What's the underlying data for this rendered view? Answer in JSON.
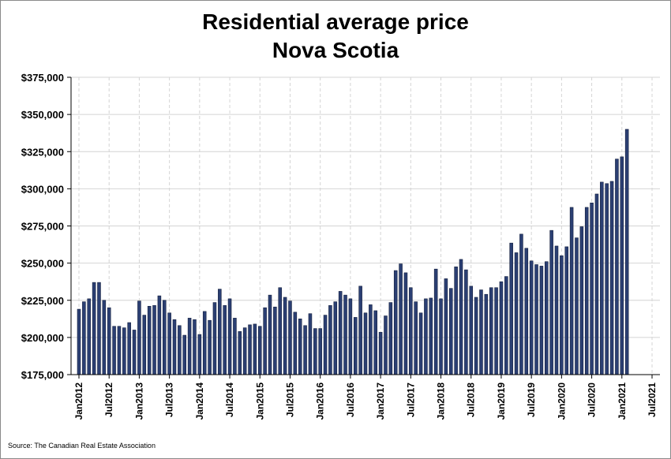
{
  "chart_data": {
    "type": "bar",
    "title": "Residential average price",
    "subtitle": "Nova Scotia",
    "xlabel": "",
    "ylabel": "",
    "ylim": [
      175000,
      375000
    ],
    "y_ticks": [
      175000,
      200000,
      225000,
      250000,
      275000,
      300000,
      325000,
      350000,
      375000
    ],
    "y_tick_labels": [
      "$175,000",
      "$200,000",
      "$225,000",
      "$250,000",
      "$275,000",
      "$300,000",
      "$325,000",
      "$350,000",
      "$375,000"
    ],
    "x_start": "Jan2012",
    "x_end": "Jul2021",
    "x_tick_labels": [
      "Jan2012",
      "Jul2012",
      "Jan2013",
      "Jul2013",
      "Jan2014",
      "Jul2014",
      "Jan2015",
      "Jul2015",
      "Jan2016",
      "Jul2016",
      "Jan2017",
      "Jul2017",
      "Jan2018",
      "Jul2018",
      "Jan2019",
      "Jul2019",
      "Jan2020",
      "Jul2020",
      "Jan2021",
      "Jul2021"
    ],
    "grid": true,
    "bar_color": "#2b3f73",
    "series": [
      {
        "values": [
          219000,
          224000,
          226000,
          237000,
          237000,
          225000,
          220000,
          207500,
          207500,
          206500,
          210000,
          205000,
          224500,
          215000,
          221000,
          221500,
          228000,
          225000,
          216500,
          212000,
          208000,
          201500,
          213000,
          212000,
          202000,
          217500,
          211500,
          223500,
          232500,
          221500,
          226000,
          213000,
          204000,
          206500,
          208500,
          209000,
          207500,
          220000,
          228500,
          220500,
          233500,
          227000,
          224500,
          217000,
          212500,
          208000,
          216000,
          206000,
          206000,
          215000,
          221500,
          224000,
          231000,
          228500,
          226000,
          213500,
          234500,
          216500,
          222000,
          218000,
          203500,
          214500,
          223500,
          245000,
          249500,
          243500,
          233500,
          224000,
          216500,
          226000,
          226500,
          246000,
          226000,
          239500,
          233000,
          247500,
          252500,
          245500,
          234500,
          227000,
          232000,
          229000,
          233500,
          233500,
          237500,
          241000,
          263500,
          257000,
          269500,
          260000,
          251500,
          249000,
          248000,
          251000,
          272000,
          261500,
          255000,
          261000,
          287500,
          267000,
          274500,
          287500,
          290500,
          296500,
          304500,
          303500,
          305000,
          320000,
          321500,
          340000
        ]
      }
    ],
    "source": "Source: The Canadian Real Estate Association"
  }
}
